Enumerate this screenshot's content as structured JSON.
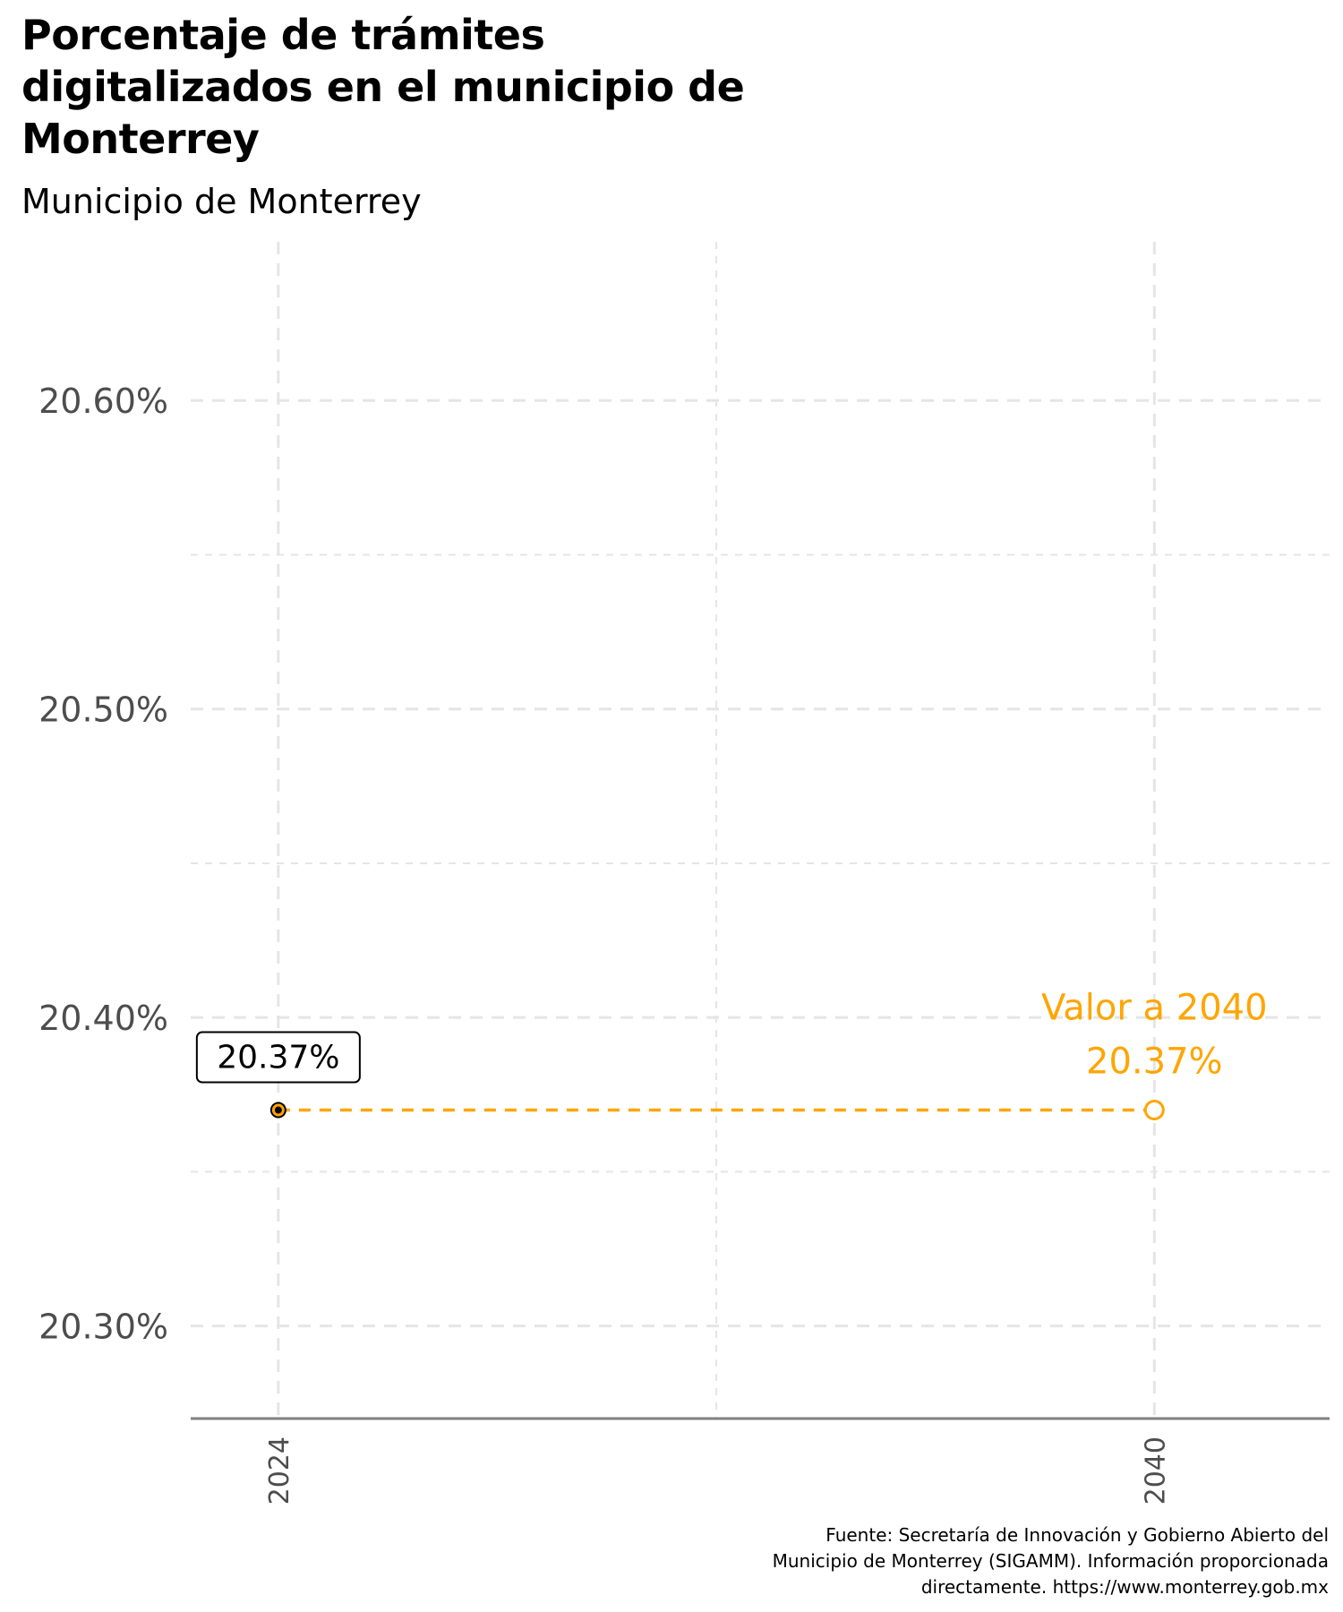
{
  "title_lines": [
    "Porcentaje de trámites",
    "digitalizados en el municipio de",
    "Monterrey"
  ],
  "subtitle": "Municipio de Monterrey",
  "caption_lines": [
    "Fuente: Secretaría de Innovación y Gobierno Abierto del",
    "Municipio de Monterrey (SIGAMM). Información proporcionada",
    "directamente. https://www.monterrey.gob.mx"
  ],
  "colors": {
    "text": "#000000",
    "axis_text": "#4d4d4d",
    "grid": "#e5e5e5",
    "axis_line": "#808080",
    "accent": "#ffa500",
    "label_border": "#000000"
  },
  "chart_data": {
    "type": "line",
    "x_tick_labels": [
      "2024",
      "2040"
    ],
    "x_ticks": [
      2024,
      2040
    ],
    "x_range": [
      2022.4,
      2043.2
    ],
    "y_tick_labels": [
      "20.30%",
      "20.40%",
      "20.50%",
      "20.60%"
    ],
    "y_ticks": [
      20.3,
      20.4,
      20.5,
      20.6
    ],
    "y_range": [
      20.27,
      20.65
    ],
    "grid": true,
    "series": [
      {
        "points": [
          {
            "x": 2024,
            "y": 20.37,
            "label": "20.37%"
          },
          {
            "x": 2040,
            "y": 20.37
          }
        ]
      }
    ],
    "annotations": [
      {
        "x": 2040,
        "y": 20.37,
        "line1": "Valor a 2040",
        "line2": "20.37%"
      }
    ]
  }
}
